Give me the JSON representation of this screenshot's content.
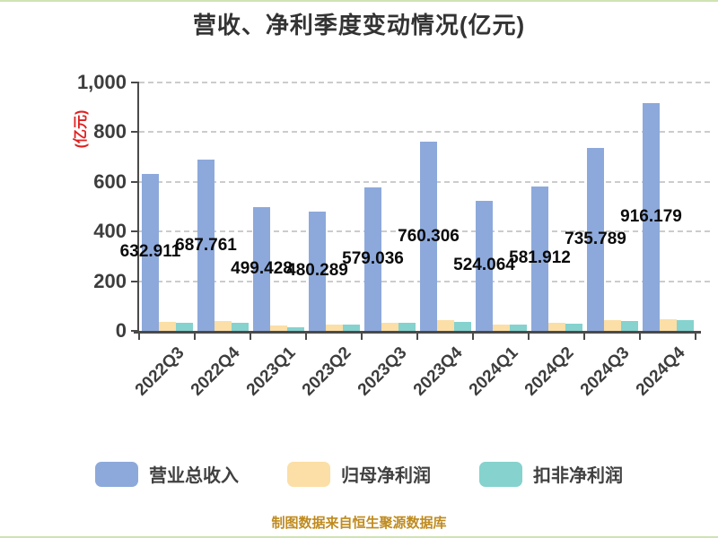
{
  "page": {
    "title": "营收、净利季度变动情况(亿元)",
    "source_note": "制图数据来自恒生聚源数据库"
  },
  "chart_data": {
    "type": "bar",
    "title": "营收、净利季度变动情况(亿元)",
    "y_axis_name": "(亿元)",
    "categories": [
      "2022Q3",
      "2022Q4",
      "2023Q1",
      "2023Q2",
      "2023Q3",
      "2023Q4",
      "2024Q1",
      "2024Q2",
      "2024Q3",
      "2024Q4"
    ],
    "series": [
      {
        "name": "营业总收入",
        "color": "#8DA9DB",
        "values": [
          632.911,
          687.761,
          499.428,
          480.289,
          579.036,
          760.306,
          524.064,
          581.912,
          735.789,
          916.179
        ],
        "labels_shown": true
      },
      {
        "name": "归母净利润",
        "color": "#FBDFA6",
        "values": [
          36,
          38,
          20,
          27,
          34,
          42,
          27,
          32,
          43,
          48
        ],
        "labels_shown": false
      },
      {
        "name": "扣非净利润",
        "color": "#85D2CE",
        "values": [
          33,
          34,
          15,
          25,
          33,
          37,
          26,
          30,
          39,
          42
        ],
        "labels_shown": false
      }
    ],
    "ylim": [
      0,
      1000
    ],
    "yticks": [
      {
        "value": 0,
        "label": "0"
      },
      {
        "value": 200,
        "label": "200"
      },
      {
        "value": 400,
        "label": "400"
      },
      {
        "value": 600,
        "label": "600"
      },
      {
        "value": 800,
        "label": "800"
      },
      {
        "value": 1000,
        "label": "1,000"
      }
    ],
    "grid": "horizontal-dashed",
    "legend_position": "bottom",
    "value_label_position": "inside-middle-of-bar"
  },
  "colors": {
    "axis": "#4a4a4a",
    "grid": "#cccccc",
    "title": "#333333",
    "tick_label": "#3d3d3d",
    "data_label": "#0a0a0a",
    "y_axis_name": "#e02020",
    "footer": "#bf8b1f",
    "page_border": "#cfe3b4"
  }
}
